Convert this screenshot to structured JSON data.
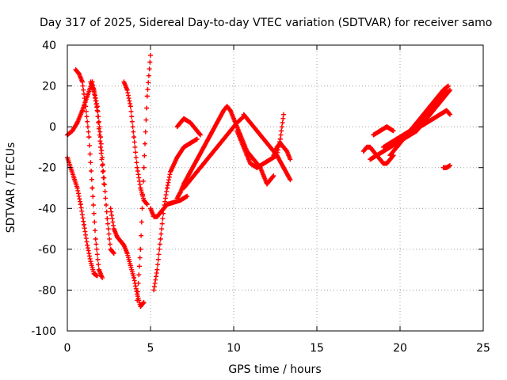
{
  "chart_data": {
    "type": "scatter",
    "title": "Day 317 of 2025, Sidereal Day-to-day VTEC variation (SDTVAR) for receiver samo",
    "xlabel": "GPS time / hours",
    "ylabel": "SDTVAR / TECUs",
    "xlim": [
      0,
      25
    ],
    "ylim": [
      -100,
      40
    ],
    "x_ticks": [
      0,
      5,
      10,
      15,
      20,
      25
    ],
    "y_ticks": [
      -100,
      -80,
      -60,
      -40,
      -20,
      0,
      20,
      40
    ],
    "x_tick_labels": [
      "0",
      "5",
      "10",
      "15",
      "20",
      "25"
    ],
    "y_tick_labels": [
      "-100",
      "-80",
      "-60",
      "-40",
      "-20",
      "0",
      "20",
      "40"
    ],
    "grid": true,
    "marker": "plus",
    "color": "#ff0000",
    "series": [
      {
        "x": [
          0.0,
          0.3,
          0.6,
          0.9,
          1.2,
          1.5,
          1.8,
          2.0,
          2.2
        ],
        "y": [
          -4,
          -2,
          2,
          8,
          15,
          22,
          8,
          -10,
          -28
        ]
      },
      {
        "x": [
          0.0,
          0.2,
          0.4,
          0.6,
          0.8,
          1.0,
          1.2,
          1.4,
          1.6,
          1.8
        ],
        "y": [
          -15,
          -20,
          -25,
          -30,
          -38,
          -48,
          -58,
          -66,
          -72,
          -73
        ]
      },
      {
        "x": [
          0.5,
          0.7,
          0.9,
          1.1,
          1.3,
          1.5,
          1.7,
          1.9,
          2.1
        ],
        "y": [
          28,
          26,
          22,
          10,
          -5,
          -30,
          -55,
          -70,
          -74
        ]
      },
      {
        "x": [
          1.4,
          1.6,
          1.8,
          2.0,
          2.2,
          2.4,
          2.6,
          2.8
        ],
        "y": [
          22,
          18,
          10,
          -5,
          -25,
          -45,
          -60,
          -62
        ]
      },
      {
        "x": [
          2.6,
          2.8,
          3.0,
          3.2,
          3.4,
          3.6,
          3.8,
          4.0,
          4.2,
          4.4,
          4.6
        ],
        "y": [
          -40,
          -50,
          -54,
          -56,
          -58,
          -62,
          -68,
          -74,
          -82,
          -88,
          -86
        ]
      },
      {
        "x": [
          3.4,
          3.6,
          3.8,
          4.0,
          4.2,
          4.4,
          4.6,
          4.8
        ],
        "y": [
          22,
          18,
          10,
          -5,
          -20,
          -30,
          -36,
          -38
        ]
      },
      {
        "x": [
          4.2,
          4.4,
          4.6,
          4.8,
          5.0
        ],
        "y": [
          -85,
          -60,
          -20,
          15,
          35
        ]
      },
      {
        "x": [
          5.0,
          5.2,
          5.4,
          5.6,
          5.8,
          6.0,
          6.4,
          6.8,
          7.2
        ],
        "y": [
          -40,
          -44,
          -44,
          -42,
          -40,
          -38,
          -37,
          -36,
          -34
        ]
      },
      {
        "x": [
          5.2,
          5.4,
          5.6,
          5.8,
          6.0,
          6.2,
          6.6,
          7.0,
          7.4,
          7.8
        ],
        "y": [
          -80,
          -70,
          -55,
          -40,
          -30,
          -22,
          -15,
          -10,
          -8,
          -6
        ]
      },
      {
        "x": [
          6.6,
          6.8,
          7.0,
          7.4,
          7.8,
          8.2,
          8.6,
          9.0,
          9.4,
          9.6
        ],
        "y": [
          -35,
          -32,
          -28,
          -22,
          -16,
          -10,
          -4,
          2,
          8,
          10
        ]
      },
      {
        "x": [
          6.6,
          6.8,
          7.0,
          7.4,
          7.8,
          8.0
        ],
        "y": [
          0,
          2,
          4,
          2,
          -2,
          -4
        ]
      },
      {
        "x": [
          7.0,
          7.4,
          7.8,
          8.2,
          8.6,
          9.0,
          9.4,
          9.8,
          10.2,
          10.6
        ],
        "y": [
          -30,
          -26,
          -22,
          -18,
          -14,
          -10,
          -6,
          -2,
          2,
          5
        ]
      },
      {
        "x": [
          9.6,
          9.8,
          10.0,
          10.2,
          10.4,
          10.6,
          10.8,
          11.0,
          11.2,
          11.4,
          11.6,
          11.8,
          12.0,
          12.4
        ],
        "y": [
          10,
          8,
          4,
          0,
          -4,
          -8,
          -12,
          -14,
          -16,
          -18,
          -20,
          -24,
          -28,
          -24
        ]
      },
      {
        "x": [
          10.2,
          10.4,
          10.6,
          10.8,
          11.0,
          11.4,
          11.8,
          12.2,
          12.6,
          13.0,
          13.4
        ],
        "y": [
          -2,
          -6,
          -10,
          -14,
          -18,
          -20,
          -18,
          -16,
          -14,
          -20,
          -26
        ]
      },
      {
        "x": [
          10.6,
          11.0,
          11.4,
          11.8,
          12.2,
          12.6,
          12.8,
          13.0
        ],
        "y": [
          6,
          2,
          -2,
          -6,
          -10,
          -14,
          -6,
          6
        ]
      },
      {
        "x": [
          12.4,
          12.6,
          12.8,
          13.0,
          13.2,
          13.4
        ],
        "y": [
          -14,
          -10,
          -8,
          -10,
          -12,
          -16
        ]
      },
      {
        "x": [
          17.8,
          18.0,
          18.2,
          18.4,
          18.6,
          18.8,
          19.0,
          19.2,
          19.4,
          19.6
        ],
        "y": [
          -12,
          -10,
          -10,
          -12,
          -14,
          -16,
          -18,
          -18,
          -16,
          -14
        ]
      },
      {
        "x": [
          18.2,
          18.6,
          19.0,
          19.4,
          19.8,
          20.2,
          20.6,
          21.0,
          21.4,
          21.8,
          22.2,
          22.6,
          23.0
        ],
        "y": [
          -16,
          -14,
          -12,
          -10,
          -8,
          -6,
          -4,
          -2,
          2,
          6,
          10,
          14,
          18
        ]
      },
      {
        "x": [
          19.0,
          19.4,
          19.8,
          20.2,
          20.6,
          21.0,
          21.4,
          21.8,
          22.2,
          22.6,
          22.8
        ],
        "y": [
          -10,
          -8,
          -6,
          -4,
          -2,
          0,
          4,
          8,
          12,
          16,
          18
        ]
      },
      {
        "x": [
          19.4,
          19.8,
          20.2,
          20.6,
          21.0,
          21.4,
          21.8,
          22.2,
          22.6,
          22.9
        ],
        "y": [
          -14,
          -10,
          -6,
          -2,
          2,
          6,
          10,
          14,
          18,
          20
        ]
      },
      {
        "x": [
          20.0,
          20.4,
          20.8,
          21.2,
          21.6,
          22.0,
          22.4,
          22.8,
          23.0
        ],
        "y": [
          -6,
          -4,
          -2,
          0,
          2,
          4,
          6,
          8,
          6
        ]
      },
      {
        "x": [
          18.4,
          18.8,
          19.2,
          19.6
        ],
        "y": [
          -4,
          -2,
          0,
          -2
        ]
      },
      {
        "x": [
          22.6,
          22.8,
          23.0
        ],
        "y": [
          -20,
          -20,
          -19
        ]
      }
    ]
  }
}
